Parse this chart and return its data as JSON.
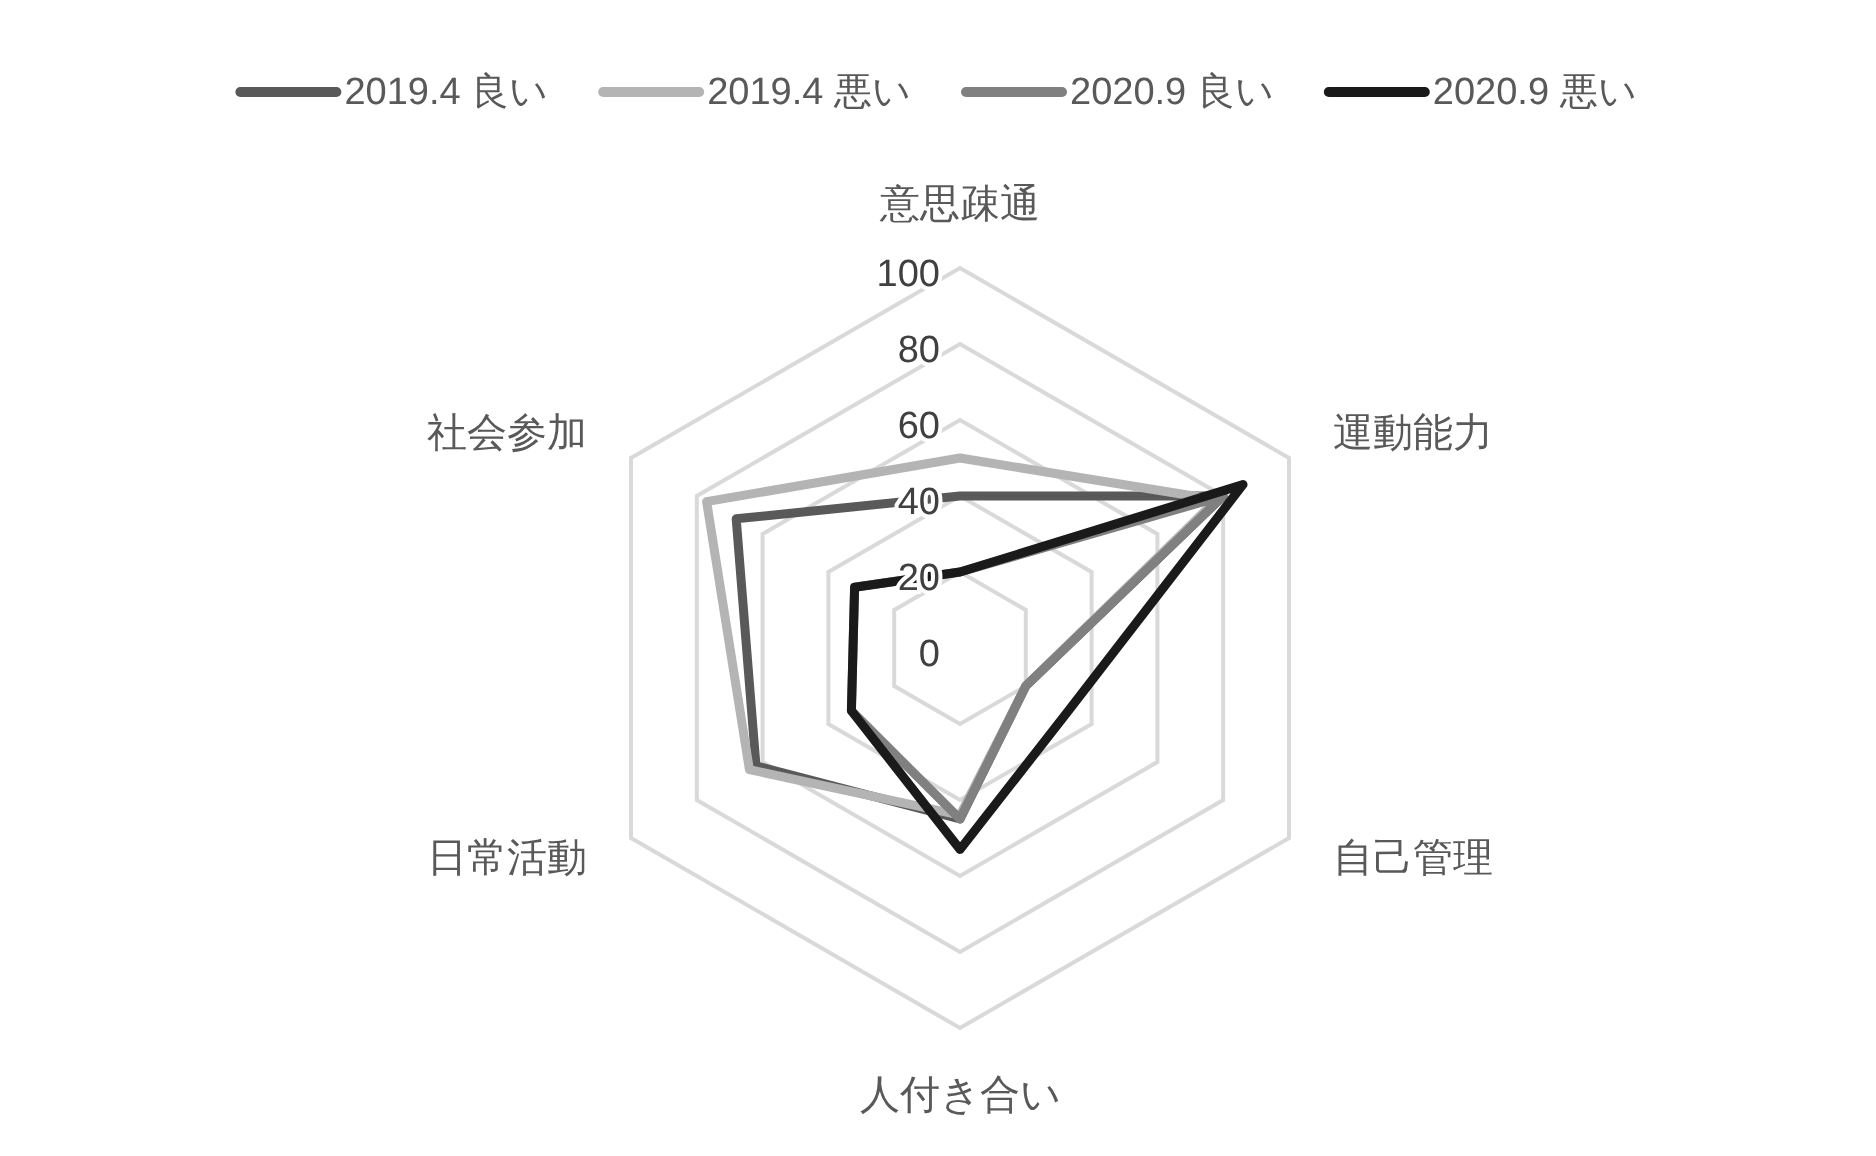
{
  "chart_data": {
    "type": "radar",
    "categories": [
      "意思疎通",
      "運動能力",
      "自己管理",
      "人付き合い",
      "日常活動",
      "社会参加"
    ],
    "series": [
      {
        "name": "2019.4 良い",
        "color": "#595959",
        "values": [
          40,
          80,
          20,
          45,
          62,
          68
        ]
      },
      {
        "name": "2019.4 悪い",
        "color": "#b4b4b4",
        "values": [
          50,
          78,
          20,
          44,
          64,
          77
        ]
      },
      {
        "name": "2020.9 良い",
        "color": "#808080",
        "values": [
          20,
          80,
          20,
          45,
          33,
          32
        ]
      },
      {
        "name": "2020.9 悪い",
        "color": "#1a1a1a",
        "values": [
          20,
          86,
          33,
          53,
          33,
          32
        ]
      }
    ],
    "ylim": [
      0,
      100
    ],
    "yticks": [
      0,
      20,
      40,
      60,
      80,
      100
    ],
    "grid": true,
    "legend": "top",
    "marker": "none",
    "line_style": "solid"
  }
}
